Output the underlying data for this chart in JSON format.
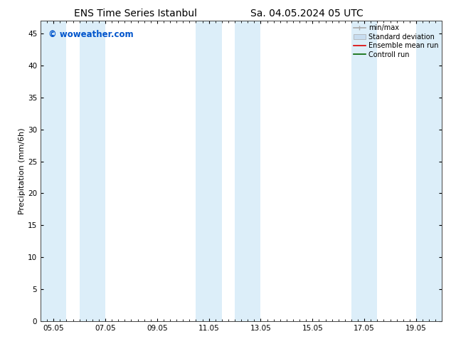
{
  "title_left": "ENS Time Series Istanbul",
  "title_right": "Sa. 04.05.2024 05 UTC",
  "ylabel": "Precipitation (mm/6h)",
  "watermark": "© woweather.com",
  "watermark_color": "#0055cc",
  "ylim": [
    0,
    47
  ],
  "yticks": [
    0,
    5,
    10,
    15,
    20,
    25,
    30,
    35,
    40,
    45
  ],
  "x_min": 0.0,
  "x_max": 15.5,
  "xtick_labels": [
    "05.05",
    "07.05",
    "09.05",
    "11.05",
    "13.05",
    "15.05",
    "17.05",
    "19.05"
  ],
  "xtick_positions": [
    0.5,
    2.5,
    4.5,
    6.5,
    8.5,
    10.5,
    12.5,
    14.5
  ],
  "shaded_bands": [
    {
      "x_start": 0.0,
      "x_end": 1.0
    },
    {
      "x_start": 1.5,
      "x_end": 2.5
    },
    {
      "x_start": 6.0,
      "x_end": 7.0
    },
    {
      "x_start": 7.5,
      "x_end": 8.5
    },
    {
      "x_start": 12.0,
      "x_end": 13.0
    },
    {
      "x_start": 14.5,
      "x_end": 15.5
    }
  ],
  "band_color": "#dceef9",
  "background_color": "#ffffff",
  "legend_entries": [
    {
      "label": "min/max",
      "color": "#aaaaaa",
      "lw": 1.2,
      "type": "minmax"
    },
    {
      "label": "Standard deviation",
      "color": "#c8ddf0",
      "lw": 6,
      "type": "band"
    },
    {
      "label": "Ensemble mean run",
      "color": "#dd0000",
      "lw": 1.2,
      "type": "line"
    },
    {
      "label": "Controll run",
      "color": "#006600",
      "lw": 1.2,
      "type": "line"
    }
  ],
  "title_fontsize": 10,
  "ylabel_fontsize": 8,
  "tick_fontsize": 7.5,
  "watermark_fontsize": 8.5
}
